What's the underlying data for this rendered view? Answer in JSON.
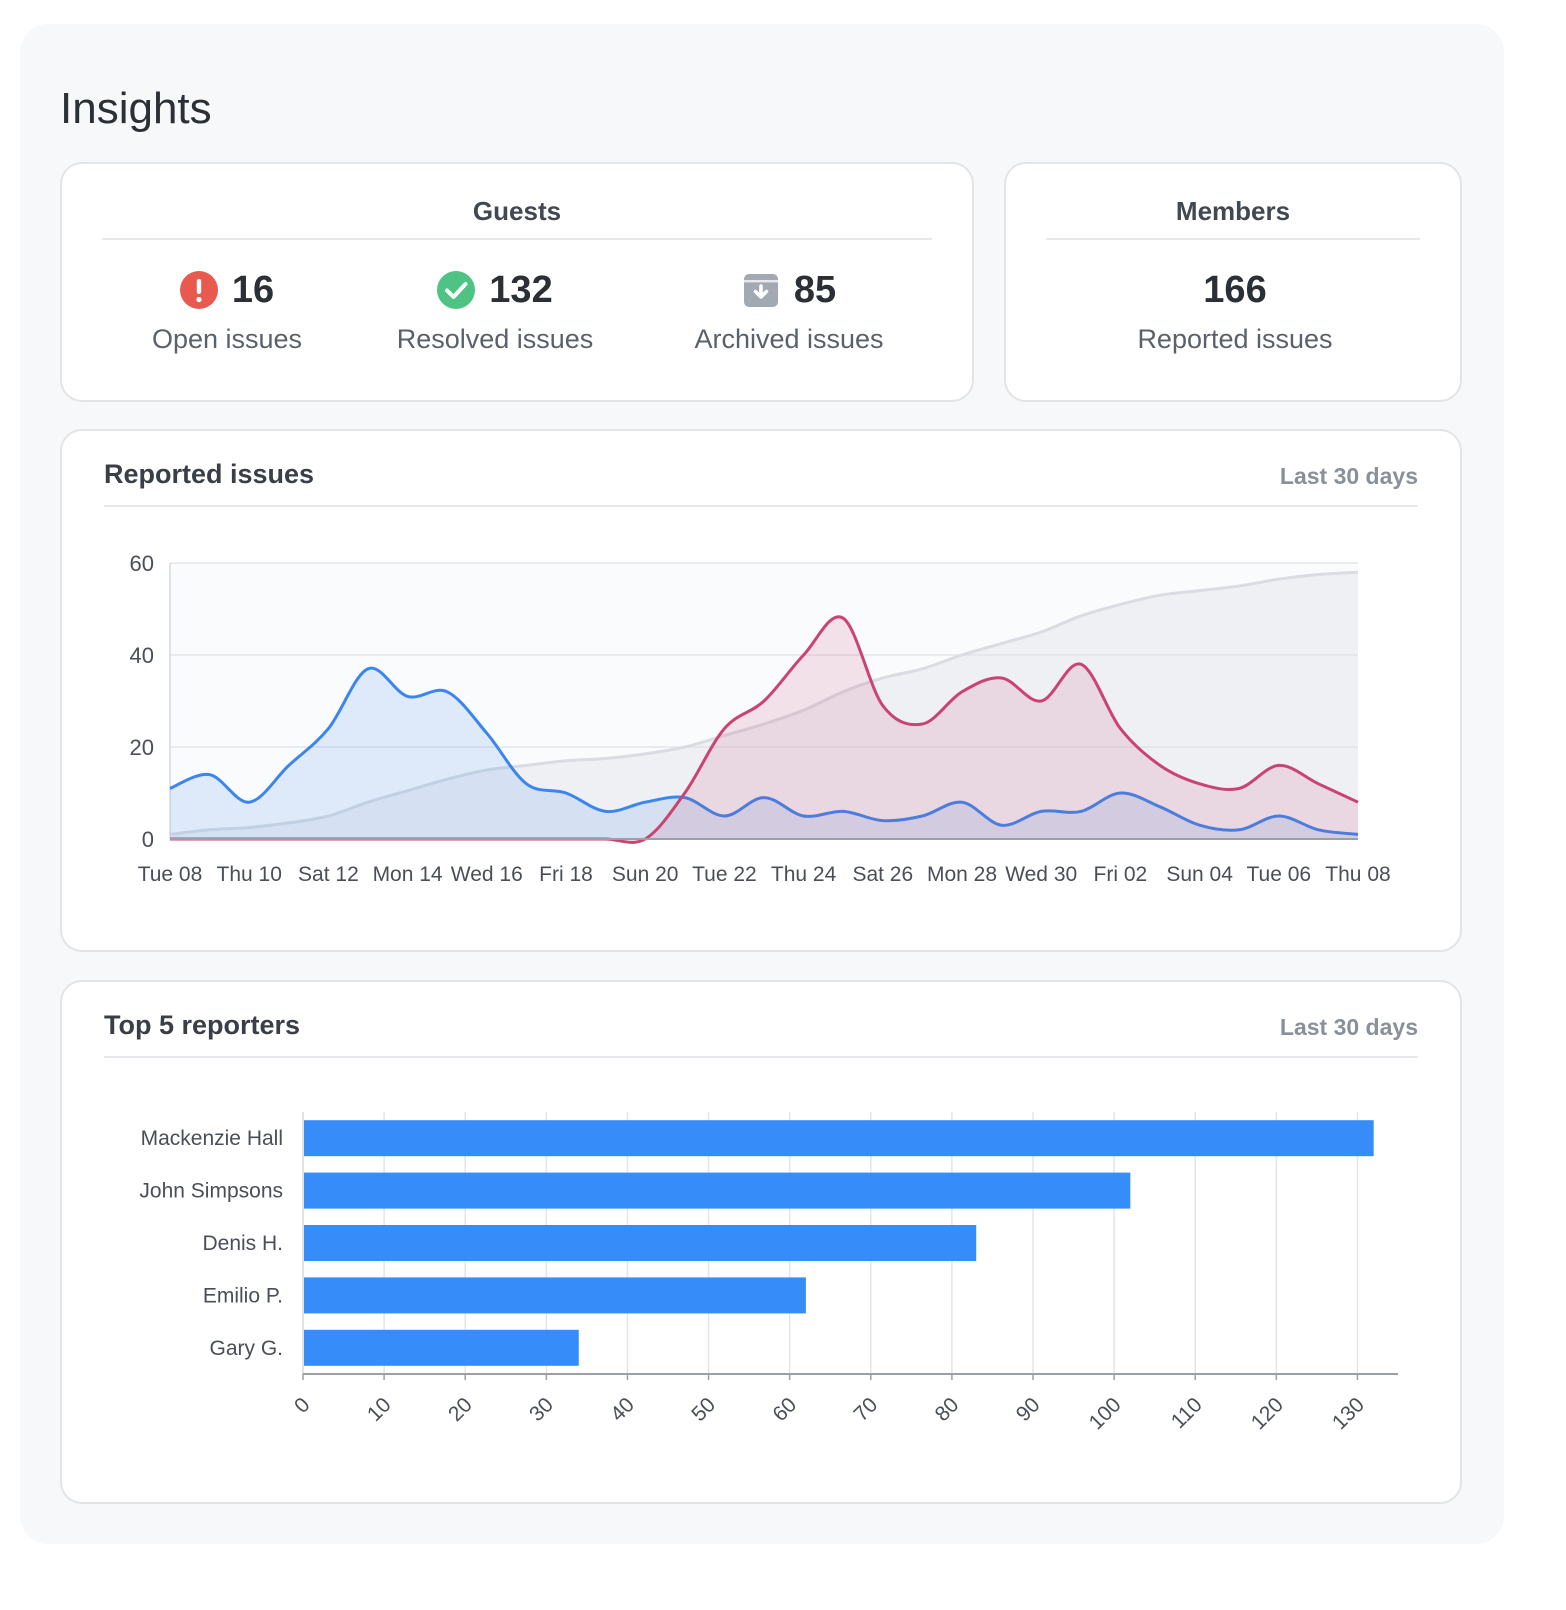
{
  "page": {
    "title": "Insights"
  },
  "guests": {
    "title": "Guests",
    "stats": [
      {
        "icon": "error-icon",
        "value": "16",
        "label": "Open issues",
        "color": "#e85a4f"
      },
      {
        "icon": "check-circle-icon",
        "value": "132",
        "label": "Resolved issues",
        "color": "#4ec383"
      },
      {
        "icon": "archive-icon",
        "value": "85",
        "label": "Archived issues",
        "color": "#a3a9b2"
      }
    ]
  },
  "members": {
    "title": "Members",
    "value": "166",
    "label": "Reported issues"
  },
  "reported_issues": {
    "title": "Reported issues",
    "range": "Last 30 days"
  },
  "top_reporters": {
    "title": "Top 5 reporters",
    "range": "Last 30 days"
  },
  "chart_data": [
    {
      "type": "area",
      "ylim": [
        0,
        60
      ],
      "yticks": [
        0,
        20,
        40,
        60
      ],
      "grid": true,
      "x": [
        "Tue 08",
        "Wed 09",
        "Thu 10",
        "Fri 11",
        "Sat 12",
        "Sun 13",
        "Mon 14",
        "Tue 15",
        "Wed 16",
        "Thu 17",
        "Fri 18",
        "Sat 19",
        "Sun 20",
        "Mon 21",
        "Tue 22",
        "Wed 23",
        "Thu 24",
        "Fri 25",
        "Sat 26",
        "Sun 27",
        "Mon 28",
        "Tue 29",
        "Wed 30",
        "Thu 01",
        "Fri 02",
        "Sat 03",
        "Sun 04",
        "Mon 05",
        "Tue 06",
        "Wed 07",
        "Thu 08"
      ],
      "xtick_labels": [
        "Tue 08",
        "Thu 10",
        "Sat 12",
        "Mon 14",
        "Wed 16",
        "Fri 18",
        "Sun 20",
        "Tue 22",
        "Thu 24",
        "Sat 26",
        "Mon 28",
        "Wed 30",
        "Fri 02",
        "Sun 04",
        "Tue 06",
        "Thu 08"
      ],
      "colors": {
        "guests": "#3a86ee",
        "members": "#c94472",
        "cumulative": "#d9dce2"
      },
      "series": [
        {
          "key": "cumulative",
          "values": [
            1,
            2,
            2.5,
            3.5,
            5,
            8,
            10.5,
            13,
            15,
            16,
            17,
            17.5,
            18.5,
            20,
            22.5,
            25,
            28,
            32,
            35,
            37,
            40,
            42.5,
            45,
            48.5,
            51,
            53,
            54,
            55,
            56.5,
            57.5,
            58
          ]
        },
        {
          "key": "guests",
          "values": [
            11,
            14,
            8,
            16,
            24,
            37,
            31,
            32,
            23,
            12,
            10,
            6,
            8,
            9,
            5,
            9,
            5,
            6,
            4,
            5,
            8,
            3,
            6,
            6,
            10,
            7,
            3,
            2,
            5,
            2,
            1
          ]
        },
        {
          "key": "members",
          "values": [
            0,
            0,
            0,
            0,
            0,
            0,
            0,
            0,
            0,
            0,
            0,
            0,
            0,
            10,
            24,
            30,
            40,
            48,
            29,
            25,
            32,
            35,
            30,
            38,
            24,
            16,
            12,
            11,
            16,
            12,
            8
          ]
        }
      ]
    },
    {
      "type": "bar",
      "orientation": "horizontal",
      "xlim": [
        0,
        135
      ],
      "xticks": [
        0,
        10,
        20,
        30,
        40,
        50,
        60,
        70,
        80,
        90,
        100,
        110,
        120,
        130
      ],
      "grid": true,
      "color": "#368cf8",
      "categories": [
        "Mackenzie Hall",
        "John Simpsons",
        "Denis H.",
        "Emilio P.",
        "Gary G."
      ],
      "values": [
        132,
        102,
        83,
        62,
        34
      ]
    }
  ]
}
